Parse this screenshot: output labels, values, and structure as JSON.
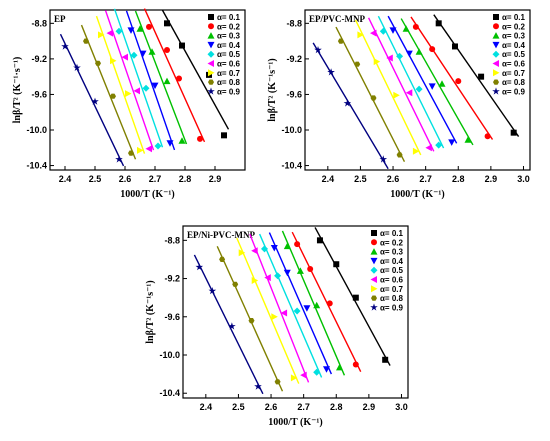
{
  "series_colors": [
    "#000000",
    "#ff0000",
    "#00c000",
    "#0000ff",
    "#00e0e0",
    "#ff00ff",
    "#ffff00",
    "#808000",
    "#000080"
  ],
  "series_markers": [
    "square",
    "circle",
    "triangle-up",
    "triangle-down",
    "diamond",
    "triangle-left",
    "triangle-right",
    "hexagon",
    "star"
  ],
  "chart_data": [
    {
      "type": "scatter",
      "title": "EP",
      "xlabel": "1000/T (K⁻¹)",
      "ylabel": "lnβ/T² (K⁻¹·s⁻¹)",
      "xlim": [
        2.35,
        3.0
      ],
      "ylim": [
        -10.45,
        -8.65
      ],
      "xticks": [
        "2.4",
        "2.5",
        "2.6",
        "2.7",
        "2.8",
        "2.9"
      ],
      "yticks": [
        "-8.8",
        "-9.2",
        "-9.6",
        "-10.0",
        "-10.4"
      ],
      "legend": "top-right",
      "series": [
        {
          "name": "α= 0.1",
          "x": [
            2.74,
            2.79,
            2.88,
            2.93
          ],
          "y": [
            -8.8,
            -9.05,
            -9.38,
            -10.06
          ]
        },
        {
          "name": "α= 0.2",
          "x": [
            2.68,
            2.74,
            2.78,
            2.85
          ],
          "y": [
            -8.84,
            -9.1,
            -9.42,
            -10.1
          ]
        },
        {
          "name": "α= 0.3",
          "x": [
            2.65,
            2.69,
            2.74,
            2.79
          ],
          "y": [
            -8.86,
            -9.12,
            -9.45,
            -10.12
          ]
        },
        {
          "name": "α= 0.4",
          "x": [
            2.62,
            2.66,
            2.7,
            2.75
          ],
          "y": [
            -8.88,
            -9.14,
            -9.5,
            -10.15
          ]
        },
        {
          "name": "α= 0.5",
          "x": [
            2.58,
            2.63,
            2.67,
            2.71
          ],
          "y": [
            -8.89,
            -9.16,
            -9.53,
            -10.18
          ]
        },
        {
          "name": "α= 0.6",
          "x": [
            2.55,
            2.6,
            2.64,
            2.68
          ],
          "y": [
            -8.91,
            -9.18,
            -9.56,
            -10.21
          ]
        },
        {
          "name": "α= 0.7",
          "x": [
            2.52,
            2.56,
            2.61,
            2.65
          ],
          "y": [
            -8.93,
            -9.22,
            -9.59,
            -10.23
          ]
        },
        {
          "name": "α= 0.8",
          "x": [
            2.47,
            2.51,
            2.56,
            2.62
          ],
          "y": [
            -9.0,
            -9.25,
            -9.62,
            -10.26
          ]
        },
        {
          "name": "α= 0.9",
          "x": [
            2.4,
            2.44,
            2.5,
            2.58
          ],
          "y": [
            -9.06,
            -9.3,
            -9.68,
            -10.33
          ]
        }
      ]
    },
    {
      "type": "scatter",
      "title": "EP/PVC-MNP",
      "xlabel": "1000/T (K⁻¹)",
      "ylabel": "lnβ/T² (K⁻¹s⁻¹)",
      "xlim": [
        2.33,
        3.02
      ],
      "ylim": [
        -10.45,
        -8.65
      ],
      "xticks": [
        "2.4",
        "2.5",
        "2.6",
        "2.7",
        "2.8",
        "2.9",
        "3.0"
      ],
      "yticks": [
        "-8.8",
        "-9.2",
        "-9.6",
        "-10.0",
        "-10.4"
      ],
      "legend": "top-right",
      "series": [
        {
          "name": "α= 0.1",
          "x": [
            2.74,
            2.79,
            2.87,
            2.97
          ],
          "y": [
            -8.8,
            -9.06,
            -9.4,
            -10.03
          ]
        },
        {
          "name": "α= 0.2",
          "x": [
            2.67,
            2.72,
            2.8,
            2.89
          ],
          "y": [
            -8.84,
            -9.09,
            -9.45,
            -10.07
          ]
        },
        {
          "name": "α= 0.3",
          "x": [
            2.64,
            2.68,
            2.75,
            2.83
          ],
          "y": [
            -8.86,
            -9.12,
            -9.48,
            -10.11
          ]
        },
        {
          "name": "α= 0.4",
          "x": [
            2.6,
            2.65,
            2.72,
            2.78
          ],
          "y": [
            -8.88,
            -9.14,
            -9.51,
            -10.14
          ]
        },
        {
          "name": "α= 0.5",
          "x": [
            2.57,
            2.62,
            2.68,
            2.74
          ],
          "y": [
            -8.89,
            -9.17,
            -9.54,
            -10.17
          ]
        },
        {
          "name": "α= 0.6",
          "x": [
            2.54,
            2.59,
            2.65,
            2.71
          ],
          "y": [
            -8.91,
            -9.19,
            -9.58,
            -10.2
          ]
        },
        {
          "name": "α= 0.7",
          "x": [
            2.5,
            2.55,
            2.61,
            2.67
          ],
          "y": [
            -8.93,
            -9.23,
            -9.61,
            -10.24
          ]
        },
        {
          "name": "α= 0.8",
          "x": [
            2.44,
            2.49,
            2.54,
            2.62
          ],
          "y": [
            -9.0,
            -9.26,
            -9.64,
            -10.28
          ]
        },
        {
          "name": "α= 0.9",
          "x": [
            2.37,
            2.41,
            2.46,
            2.57
          ],
          "y": [
            -9.1,
            -9.35,
            -9.7,
            -10.33
          ]
        }
      ]
    },
    {
      "type": "scatter",
      "title": "EP/Ni-PVC-MNP",
      "xlabel": "1000/T (K⁻¹)",
      "ylabel": "lnβ/T² (K⁻¹s⁻¹)",
      "xlim": [
        2.33,
        3.02
      ],
      "ylim": [
        -10.45,
        -8.65
      ],
      "xticks": [
        "2.4",
        "2.5",
        "2.6",
        "2.7",
        "2.8",
        "2.9",
        "3.0"
      ],
      "yticks": [
        "-8.8",
        "-9.2",
        "-9.6",
        "-10.0",
        "-10.4"
      ],
      "legend": "top-right",
      "series": [
        {
          "name": "α= 0.1",
          "x": [
            2.75,
            2.8,
            2.86,
            2.95
          ],
          "y": [
            -8.8,
            -9.05,
            -9.4,
            -10.05
          ]
        },
        {
          "name": "α= 0.2",
          "x": [
            2.68,
            2.72,
            2.78,
            2.86
          ],
          "y": [
            -8.84,
            -9.1,
            -9.46,
            -10.1
          ]
        },
        {
          "name": "α= 0.3",
          "x": [
            2.65,
            2.69,
            2.74,
            2.81
          ],
          "y": [
            -8.86,
            -9.12,
            -9.48,
            -10.13
          ]
        },
        {
          "name": "α= 0.4",
          "x": [
            2.61,
            2.65,
            2.71,
            2.77
          ],
          "y": [
            -8.88,
            -9.14,
            -9.51,
            -10.15
          ]
        },
        {
          "name": "α= 0.5",
          "x": [
            2.58,
            2.62,
            2.68,
            2.74
          ],
          "y": [
            -8.89,
            -9.17,
            -9.54,
            -10.18
          ]
        },
        {
          "name": "α= 0.6",
          "x": [
            2.55,
            2.59,
            2.64,
            2.7
          ],
          "y": [
            -8.91,
            -9.19,
            -9.56,
            -10.21
          ]
        },
        {
          "name": "α= 0.7",
          "x": [
            2.51,
            2.55,
            2.61,
            2.67
          ],
          "y": [
            -8.93,
            -9.22,
            -9.6,
            -10.24
          ]
        },
        {
          "name": "α= 0.8",
          "x": [
            2.45,
            2.49,
            2.54,
            2.62
          ],
          "y": [
            -9.0,
            -9.26,
            -9.64,
            -10.28
          ]
        },
        {
          "name": "α= 0.9",
          "x": [
            2.38,
            2.42,
            2.48,
            2.56
          ],
          "y": [
            -9.08,
            -9.33,
            -9.7,
            -10.33
          ]
        }
      ]
    }
  ]
}
